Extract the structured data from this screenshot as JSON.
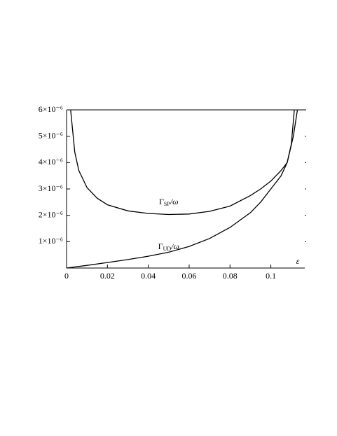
{
  "chart_data": {
    "type": "line",
    "x_label": "ε",
    "xlim": [
      0,
      0.1166
    ],
    "xticks": [
      0,
      0.02,
      0.04,
      0.06,
      0.08,
      0.1
    ],
    "ylim": [
      0,
      6e-06
    ],
    "yticks": [
      {
        "value": 1e-06,
        "label": "1×10⁻⁶"
      },
      {
        "value": 2e-06,
        "label": "2×10⁻⁶"
      },
      {
        "value": 3e-06,
        "label": "3×10⁻⁶"
      },
      {
        "value": 4e-06,
        "label": "4×10⁻⁶"
      },
      {
        "value": 5e-06,
        "label": "5×10⁻⁶"
      },
      {
        "value": 6e-06,
        "label": "6×10⁻⁶"
      }
    ],
    "annotations": [
      {
        "symbol": "Γ",
        "subscript": "SP",
        "suffix": "/ω",
        "x": 0.05,
        "y": 2.5e-06
      },
      {
        "symbol": "Γ",
        "subscript": "UD",
        "suffix": "/ω",
        "x": 0.05,
        "y": 8e-07
      }
    ],
    "series": [
      {
        "color": "#000000",
        "x": [
          0.002,
          0.004,
          0.006,
          0.01,
          0.015,
          0.02,
          0.03,
          0.04,
          0.05,
          0.06,
          0.07,
          0.08,
          0.09,
          0.095,
          0.1,
          0.105,
          0.108,
          0.11,
          0.1115
        ],
        "values": [
          6e-06,
          4.4e-06,
          3.7e-06,
          3.05e-06,
          2.65e-06,
          2.4e-06,
          2.17e-06,
          2.07e-06,
          2.03e-06,
          2.05e-06,
          2.15e-06,
          2.35e-06,
          2.75e-06,
          3e-06,
          3.3e-06,
          3.7e-06,
          4e-06,
          4.7e-06,
          6e-06
        ]
      },
      {
        "color": "#000000",
        "x": [
          0,
          0.01,
          0.02,
          0.03,
          0.04,
          0.05,
          0.06,
          0.07,
          0.08,
          0.09,
          0.095,
          0.1,
          0.105,
          0.108,
          0.111,
          0.113
        ],
        "values": [
          0,
          1e-07,
          2.1e-07,
          3.2e-07,
          4.5e-07,
          6e-07,
          8.2e-07,
          1.12e-06,
          1.54e-06,
          2.1e-06,
          2.5e-06,
          3e-06,
          3.5e-06,
          4e-06,
          5e-06,
          6e-06
        ]
      }
    ]
  }
}
